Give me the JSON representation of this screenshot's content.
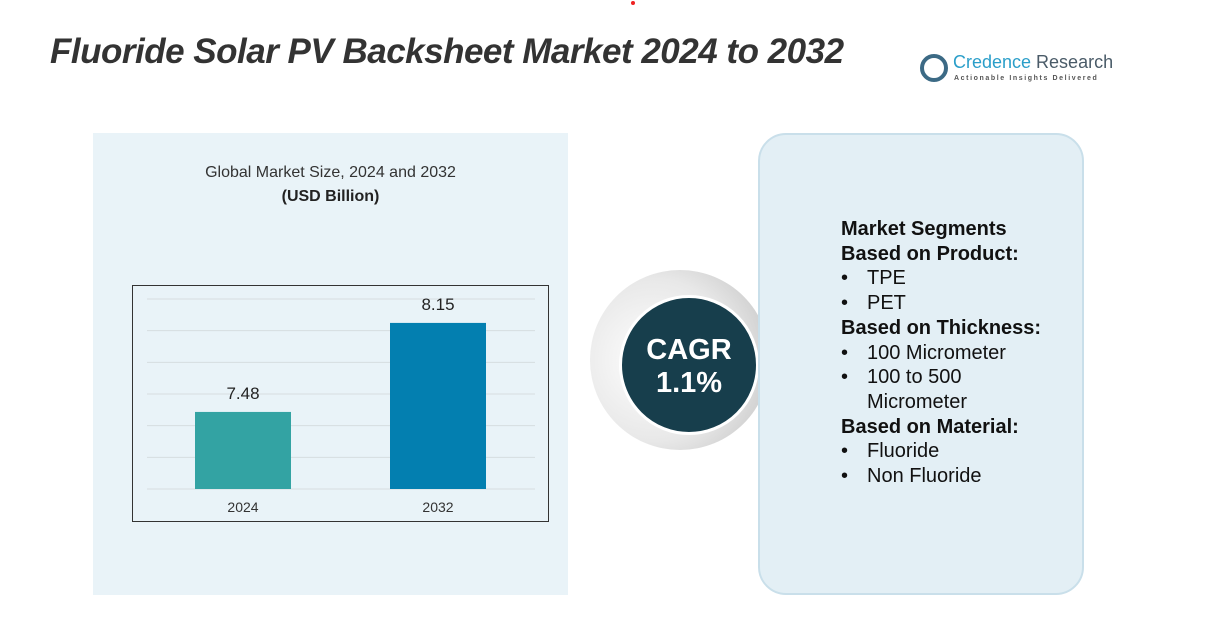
{
  "title": "Fluoride Solar PV Backsheet Market 2024 to 2032",
  "logo": {
    "name_a": "Credence",
    "name_b": " Research",
    "tagline": "Actionable Insights Delivered"
  },
  "chart_data": {
    "type": "bar",
    "title": "Global Market Size, 2024 and 2032",
    "ylabel": "(USD Billion)",
    "categories": [
      "2024",
      "2032"
    ],
    "values": [
      7.48,
      8.15
    ],
    "value_labels": [
      "7.48",
      "8.15"
    ],
    "colors": [
      "#33a3a3",
      "#037fb0"
    ],
    "ylim": [
      6.9,
      8.33
    ],
    "grid": true
  },
  "cagr": {
    "label": "CAGR",
    "value": "1.1%"
  },
  "segments": {
    "heading": "Market Segments",
    "groups": [
      {
        "title": "Based on Product:",
        "items": [
          "TPE",
          "PET"
        ]
      },
      {
        "title": "Based on Thickness:",
        "items": [
          "100 Micrometer",
          "100 to 500 Micrometer"
        ]
      },
      {
        "title": "Based on Material:",
        "items": [
          "Fluoride",
          "Non Fluoride"
        ]
      }
    ]
  }
}
